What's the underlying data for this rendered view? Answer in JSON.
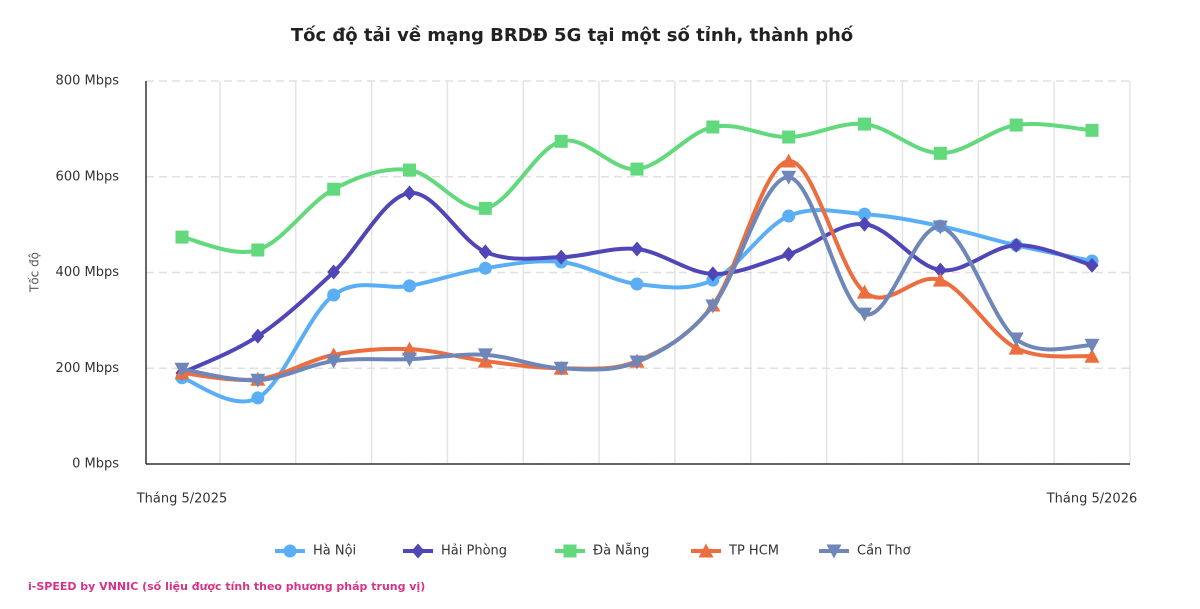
{
  "chart_data": {
    "type": "line",
    "title": "Tốc độ tải về mạng BRDĐ 5G tại một số tỉnh, thành phố",
    "y_label": "Tốc độ",
    "source": "i-SPEED by VNNIC (số liệu được tính theo phương pháp trung vị)",
    "categories": [
      "Tháng 5/2025",
      null,
      null,
      null,
      null,
      null,
      null,
      null,
      null,
      null,
      null,
      null,
      "Tháng 5/2026"
    ],
    "series": [
      {
        "name": "Hà Nội",
        "color": "#5aaef5",
        "marker": "circle",
        "values": [
          180,
          138,
          353,
          372,
          409,
          422,
          376,
          384,
          518,
          522,
          497,
          457,
          424
        ]
      },
      {
        "name": "Hải Phòng",
        "color": "#5046b8",
        "marker": "diamond",
        "values": [
          190,
          267,
          401,
          566,
          443,
          432,
          449,
          397,
          438,
          501,
          405,
          457,
          415
        ]
      },
      {
        "name": "Đà Nẵng",
        "color": "#62d97c",
        "marker": "square",
        "values": [
          474,
          447,
          574,
          614,
          534,
          674,
          616,
          704,
          683,
          710,
          649,
          708,
          697
        ]
      },
      {
        "name": "TP HCM",
        "color": "#ec6e3e",
        "marker": "triangle-up",
        "values": [
          190,
          177,
          228,
          240,
          215,
          200,
          215,
          332,
          633,
          359,
          384,
          242,
          225
        ]
      },
      {
        "name": "Cần Thơ",
        "color": "#6e86b8",
        "marker": "triangle-down",
        "values": [
          198,
          175,
          215,
          219,
          228,
          200,
          213,
          330,
          599,
          313,
          495,
          261,
          248
        ]
      }
    ],
    "ylim": [
      0,
      800
    ],
    "yticks": [
      {
        "value": 0,
        "label": "0 Mbps"
      },
      {
        "value": 200,
        "label": "200 Mbps"
      },
      {
        "value": 400,
        "label": "400 Mbps"
      },
      {
        "value": 600,
        "label": "600 Mbps"
      },
      {
        "value": 800,
        "label": "800 Mbps"
      }
    ],
    "grid": true,
    "smooth": true,
    "legend": "bottom"
  }
}
